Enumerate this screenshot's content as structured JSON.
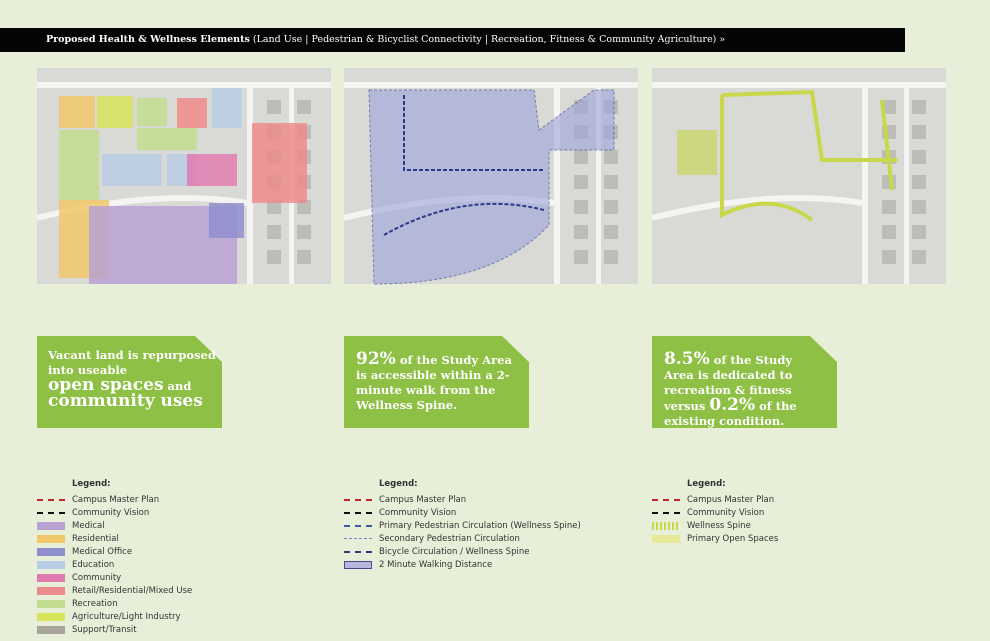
{
  "header": {
    "title": "Proposed Health & Wellness Elements",
    "subtitle": "(Land Use | Pedestrian & Bicyclist Connectivity | Recreation, Fitness & Community Agriculture) »"
  },
  "panels": [
    {
      "callout": [
        "Vacant land is repurposed into useable",
        "open spaces",
        "and",
        "community uses"
      ],
      "legend": {
        "title": "Legend:",
        "items": [
          "Campus Master Plan",
          "Community Vision",
          "Medical",
          "Residential",
          "Medical Office",
          "Education",
          "Community",
          "Retail/Residential/Mixed Use",
          "Recreation",
          "Agriculture/Light Industry",
          "Support/Transit"
        ]
      }
    },
    {
      "callout": [
        "92%",
        "of the Study Area is accessible within a 2-minute walk from the Wellness Spine."
      ],
      "legend": {
        "title": "Legend:",
        "items": [
          "Campus Master Plan",
          "Community Vision",
          "Primary Pedestrian Circulation (Wellness Spine)",
          "Secondary Pedestrian Circulation",
          "Bicycle Circulation / Wellness Spine",
          "2 Minute Walking Distance"
        ]
      }
    },
    {
      "callout": [
        "8.5%",
        "of the Study Area is dedicated to recreation & fitness versus",
        "0.2%",
        "of the existing condition."
      ],
      "legend": {
        "title": "Legend:",
        "items": [
          "Campus Master Plan",
          "Community Vision",
          "Wellness Spine",
          "Primary Open Spaces"
        ]
      }
    }
  ]
}
